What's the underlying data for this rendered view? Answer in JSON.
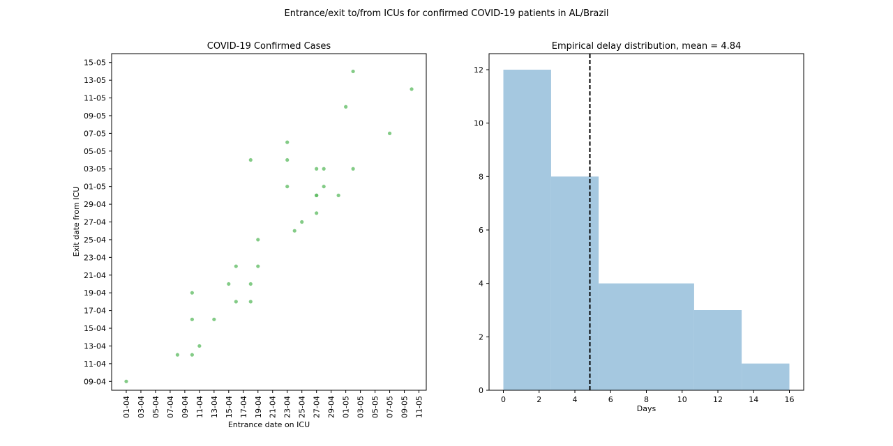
{
  "suptitle": "Entrance/exit to/from ICUs for confirmed COVID-19 patients in AL/Brazil",
  "chart_data": [
    {
      "type": "scatter",
      "title": "COVID-19 Confirmed Cases",
      "xlabel": "Entrance date on ICU",
      "ylabel": "Exit date from ICU",
      "color": "#5ab95e",
      "x_ticks": [
        "01-04",
        "03-04",
        "05-04",
        "07-04",
        "09-04",
        "11-04",
        "13-04",
        "15-04",
        "17-04",
        "19-04",
        "21-04",
        "23-04",
        "25-04",
        "27-04",
        "29-04",
        "01-05",
        "03-05",
        "05-05",
        "07-05",
        "09-05",
        "11-05"
      ],
      "y_ticks": [
        "09-04",
        "11-04",
        "13-04",
        "15-04",
        "17-04",
        "19-04",
        "21-04",
        "23-04",
        "25-04",
        "27-04",
        "29-04",
        "01-05",
        "03-05",
        "05-05",
        "07-05",
        "09-05",
        "11-05",
        "13-05",
        "15-05"
      ],
      "xlim": [
        "30-03",
        "12-05"
      ],
      "ylim": [
        "08-04",
        "16-05"
      ],
      "points": [
        {
          "x": "01-04",
          "y": "09-04"
        },
        {
          "x": "08-04",
          "y": "12-04"
        },
        {
          "x": "10-04",
          "y": "12-04"
        },
        {
          "x": "11-04",
          "y": "13-04"
        },
        {
          "x": "10-04",
          "y": "16-04"
        },
        {
          "x": "10-04",
          "y": "19-04"
        },
        {
          "x": "13-04",
          "y": "16-04"
        },
        {
          "x": "15-04",
          "y": "20-04"
        },
        {
          "x": "16-04",
          "y": "18-04"
        },
        {
          "x": "16-04",
          "y": "22-04"
        },
        {
          "x": "18-04",
          "y": "18-04"
        },
        {
          "x": "18-04",
          "y": "20-04"
        },
        {
          "x": "18-04",
          "y": "04-05"
        },
        {
          "x": "19-04",
          "y": "22-04"
        },
        {
          "x": "19-04",
          "y": "25-04"
        },
        {
          "x": "23-04",
          "y": "01-05"
        },
        {
          "x": "23-04",
          "y": "04-05"
        },
        {
          "x": "23-04",
          "y": "06-05"
        },
        {
          "x": "24-04",
          "y": "26-04"
        },
        {
          "x": "25-04",
          "y": "27-04"
        },
        {
          "x": "27-04",
          "y": "28-04"
        },
        {
          "x": "27-04",
          "y": "30-04"
        },
        {
          "x": "27-04",
          "y": "30-04"
        },
        {
          "x": "27-04",
          "y": "03-05"
        },
        {
          "x": "28-04",
          "y": "01-05"
        },
        {
          "x": "28-04",
          "y": "03-05"
        },
        {
          "x": "30-04",
          "y": "30-04"
        },
        {
          "x": "01-05",
          "y": "10-05"
        },
        {
          "x": "02-05",
          "y": "03-05"
        },
        {
          "x": "02-05",
          "y": "14-05"
        },
        {
          "x": "07-05",
          "y": "07-05"
        },
        {
          "x": "10-05",
          "y": "12-05"
        }
      ],
      "grid": false
    },
    {
      "type": "histogram",
      "title": "Empirical delay distribution, mean = 4.84",
      "xlabel": "Days",
      "ylabel": "",
      "color": "#a5c8e0",
      "bins": [
        {
          "from": 0,
          "to": 2.67,
          "count": 12
        },
        {
          "from": 2.67,
          "to": 5.33,
          "count": 8
        },
        {
          "from": 5.33,
          "to": 8.0,
          "count": 4
        },
        {
          "from": 8.0,
          "to": 10.67,
          "count": 4
        },
        {
          "from": 10.67,
          "to": 13.33,
          "count": 3
        },
        {
          "from": 13.33,
          "to": 16.0,
          "count": 1
        }
      ],
      "mean": 4.84,
      "x_ticks": [
        "0",
        "2",
        "4",
        "6",
        "8",
        "10",
        "12",
        "14",
        "16"
      ],
      "y_ticks": [
        "0",
        "2",
        "4",
        "6",
        "8",
        "10",
        "12"
      ],
      "xlim": [
        -0.8,
        16.8
      ],
      "ylim": [
        0,
        12.6
      ],
      "grid": false
    }
  ]
}
